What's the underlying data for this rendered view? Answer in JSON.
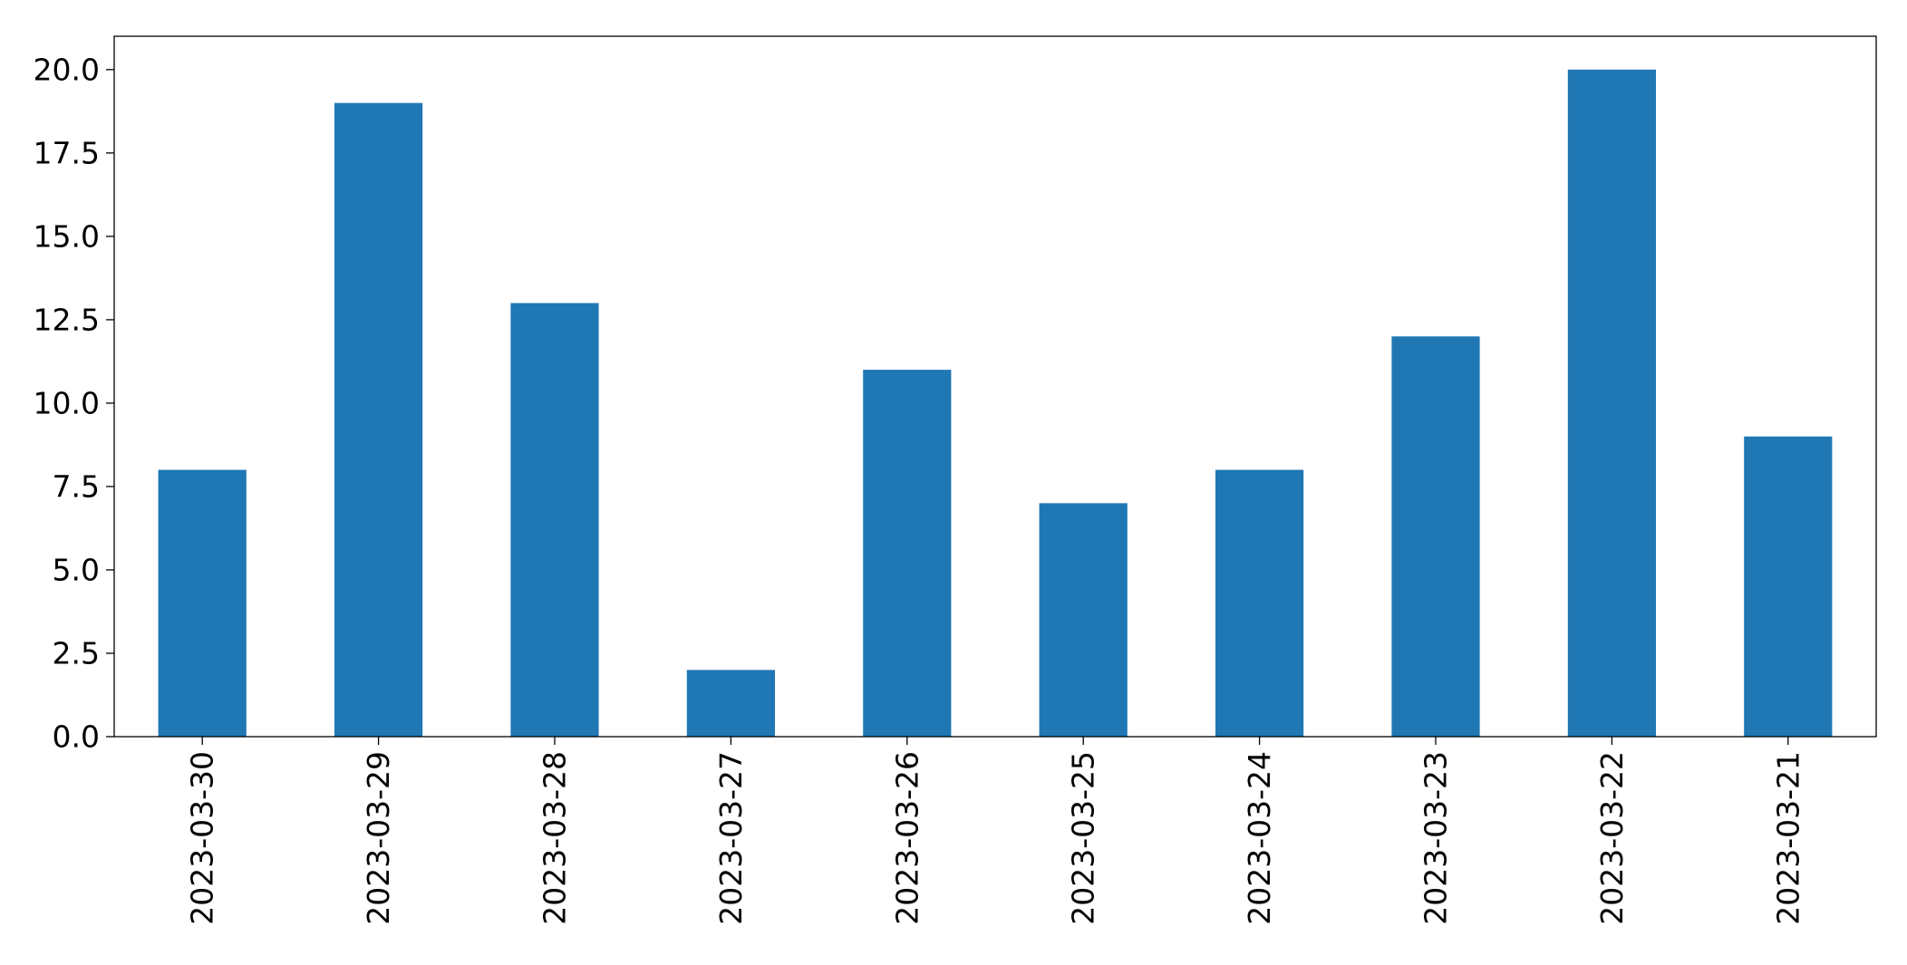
{
  "chart_data": {
    "type": "bar",
    "title": "",
    "xlabel": "",
    "ylabel": "",
    "categories": [
      "2023-03-30",
      "2023-03-29",
      "2023-03-28",
      "2023-03-27",
      "2023-03-26",
      "2023-03-25",
      "2023-03-24",
      "2023-03-23",
      "2023-03-22",
      "2023-03-21"
    ],
    "values": [
      8,
      19,
      13,
      2,
      11,
      7,
      8,
      12,
      20,
      9
    ],
    "ylim": [
      0,
      21
    ],
    "yticks": [
      "0.0",
      "2.5",
      "5.0",
      "7.5",
      "10.0",
      "12.5",
      "15.0",
      "17.5",
      "20.0"
    ],
    "bar_color": "#1f77b4",
    "grid": false,
    "legend": false
  }
}
